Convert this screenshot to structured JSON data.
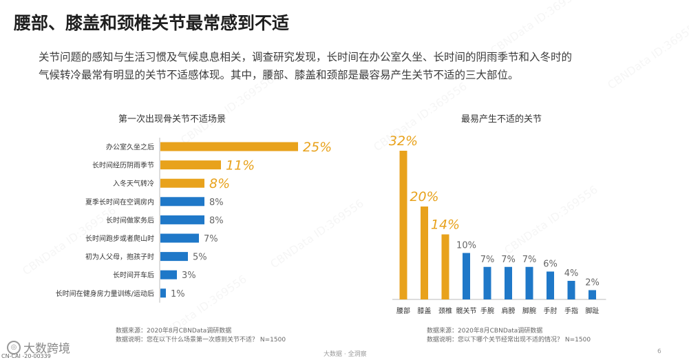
{
  "page": {
    "title": "腰部、膝盖和颈椎关节最常感到不适",
    "intro_lines": [
      "关节问题的感知与生活习惯及气候息息相关，调查研究发现，长时间在办公室久坐、长时间的阴雨季节和入冬时的",
      "气候转冷最常有明显的关节不适感体现。其中，腰部、膝盖和颈部是最容易产生关节不适的三大部位。"
    ],
    "logo": "大数跨境",
    "code": "CN-CAI -20-00339",
    "bottom_center": "大数据 · 全洞察",
    "page_number": "6",
    "watermark_text": "CBNData ID:369556"
  },
  "colors": {
    "orange": "#E8A21C",
    "blue": "#1F78C8",
    "axis": "#bbbbbb"
  },
  "chart_data": [
    {
      "type": "bar",
      "orientation": "horizontal",
      "title": "第一次出现骨关节不适场景",
      "categories": [
        "办公室久坐之后",
        "长时间经历阴雨季节",
        "入冬天气转冷",
        "夏季长时间在空调房内",
        "长时间做家务后",
        "长时间跑步或者爬山时",
        "初为人父母，抱孩子时",
        "长时间开车后",
        "长时间在健身房力量训练/运动后"
      ],
      "values": [
        25,
        11,
        8,
        8,
        8,
        7,
        5,
        3,
        1
      ],
      "labels": [
        "25%",
        "11%",
        "8%",
        "8%",
        "8%",
        "7%",
        "5%",
        "3%",
        "1%"
      ],
      "highlight_count": 3,
      "xlim": [
        0,
        25
      ],
      "footnote_source": "数据来源：2020年8月CBNData调研数据",
      "footnote_note": "数据说明：您在以下什么场景第一次感到关节不适？ N=1500"
    },
    {
      "type": "bar",
      "orientation": "vertical",
      "title": "最易产生不适的关节",
      "categories": [
        "腰部",
        "膝盖",
        "颈椎",
        "髋关节",
        "手腕",
        "肩膀",
        "脚腕",
        "手肘",
        "手指",
        "脚趾"
      ],
      "values": [
        32,
        20,
        14,
        10,
        7,
        7,
        7,
        6,
        4,
        2
      ],
      "labels": [
        "32%",
        "20%",
        "14%",
        "10%",
        "7%",
        "7%",
        "7%",
        "6%",
        "4%",
        "2%"
      ],
      "highlight_count": 3,
      "ylim": [
        0,
        32
      ],
      "footnote_source": "数据来源：2020年8月CBNData调研数据",
      "footnote_note": "数据说明：您以下哪个关节经常出现不适的情况？ N=1500"
    }
  ]
}
